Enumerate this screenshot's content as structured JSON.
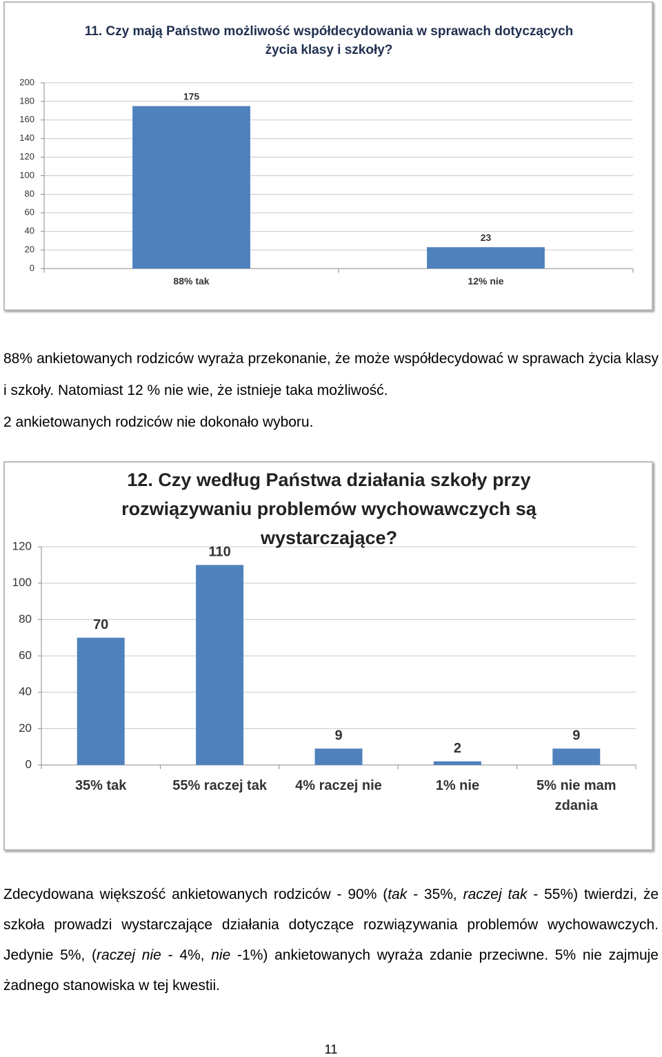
{
  "chart_data": [
    {
      "type": "bar",
      "title": "11. Czy mają Państwo możliwość współdecydowania w sprawach dotyczących życia klasy i szkoły?",
      "categories": [
        "88% tak",
        "12% nie"
      ],
      "values": [
        175,
        23
      ],
      "color": "#4f81bd",
      "ylim": [
        0,
        200
      ],
      "yticks": [
        0,
        20,
        40,
        60,
        80,
        100,
        120,
        140,
        160,
        180,
        200
      ],
      "grid": true
    },
    {
      "type": "bar",
      "title": "12. Czy według Państwa działania szkoły przy rozwiązywaniu problemów wychowawczych są wystarczające?",
      "categories": [
        "35% tak",
        "55% raczej tak",
        "4% raczej nie",
        "1% nie",
        "5% nie mam zdania"
      ],
      "values": [
        70,
        110,
        9,
        2,
        9
      ],
      "color": "#4f81bd",
      "ylim": [
        0,
        120
      ],
      "yticks": [
        0,
        20,
        40,
        60,
        80,
        100,
        120
      ],
      "grid": true
    }
  ],
  "paragraphs": [
    [
      {
        "text": "88% ankietowanych rodziców wyraża przekonanie, że może współdecydować w sprawach życia klasy i szkoły. Natomiast 12 % nie wie, że istnieje taka możliwość.",
        "italic": false
      }
    ],
    [
      {
        "text": "2 ankietowanych rodziców nie dokonało wyboru.",
        "italic": false
      }
    ],
    [
      {
        "text": "Zdecydowana większość ankietowanych rodziców - 90% (",
        "italic": false
      },
      {
        "text": "tak",
        "italic": true
      },
      {
        "text": " - 35%, ",
        "italic": false
      },
      {
        "text": "raczej tak",
        "italic": true
      },
      {
        "text": " - 55%) twierdzi, że szkoła prowadzi wystarczające działania dotyczące rozwiązywania problemów wychowawczych. Jedynie 5%, (",
        "italic": false
      },
      {
        "text": "raczej nie",
        "italic": true
      },
      {
        "text": " - 4%, ",
        "italic": false
      },
      {
        "text": "nie",
        "italic": true
      },
      {
        "text": " -1%) ankietowanych wyraża zdanie przeciwne. 5% nie zajmuje żadnego stanowiska w tej kwestii.",
        "italic": false
      }
    ]
  ],
  "page_number": "11"
}
